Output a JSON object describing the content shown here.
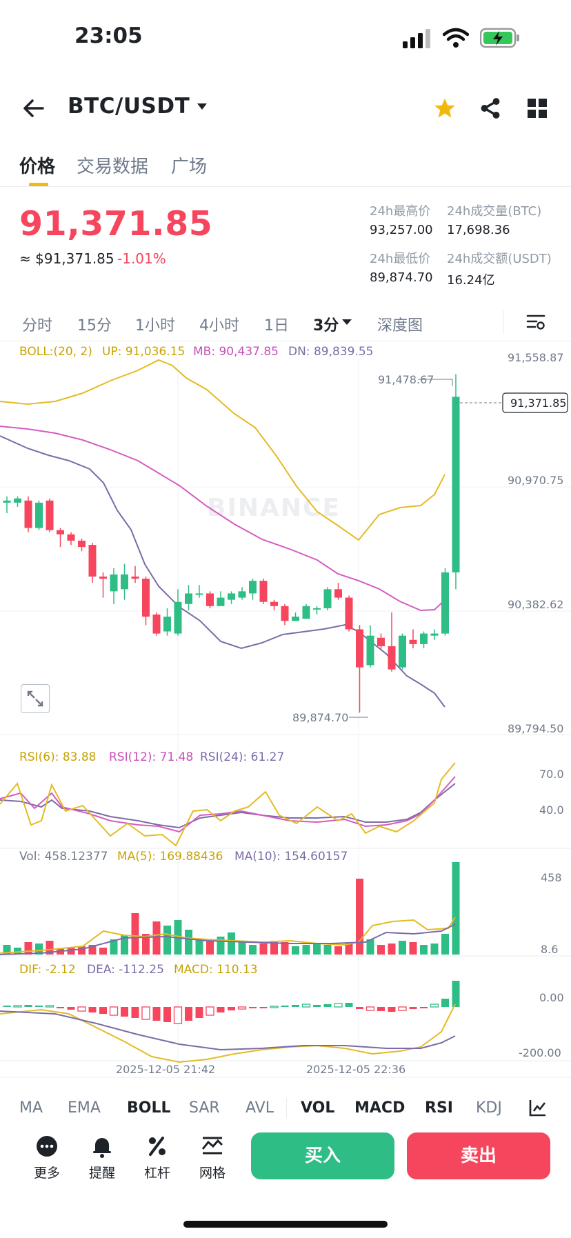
{
  "status": {
    "time": "23:05"
  },
  "header": {
    "pair": "BTC/USDT"
  },
  "tabs": [
    "价格",
    "交易数据",
    "广场"
  ],
  "price": {
    "last": "91,371.85",
    "usd": "≈ $91,371.85",
    "change": "-1.01%"
  },
  "stats": {
    "high_label": "24h最高价",
    "high": "93,257.00",
    "volbtc_label": "24h成交量(BTC)",
    "volbtc": "17,698.36",
    "low_label": "24h最低价",
    "low": "89,874.70",
    "volusdt_label": "24h成交额(USDT)",
    "volusdt": "16.24亿"
  },
  "intervals": [
    "分时",
    "15分",
    "1小时",
    "4小时",
    "1日",
    "3分",
    "深度图"
  ],
  "indicators": {
    "boll": {
      "name": "BOLL:(20, 2)",
      "up": "UP: 91,036.15",
      "mb": "MB: 90,437.85",
      "dn": "DN: 89,839.55"
    },
    "rsi": {
      "r6": "RSI(6): 83.88",
      "r12": "RSI(12): 71.48",
      "r24": "RSI(24): 61.27"
    },
    "vol": {
      "vol": "Vol: 458.12377",
      "ma5": "MA(5): 169.88436",
      "ma10": "MA(10): 154.60157"
    },
    "macd": {
      "dif": "DIF: -2.12",
      "dea": "DEA: -112.25",
      "macd": "MACD: 110.13"
    }
  },
  "axis": {
    "price": [
      "91,558.87",
      "90,970.75",
      "90,382.62",
      "89,794.50"
    ],
    "rsi": [
      "70.0",
      "40.0"
    ],
    "vol": [
      "458",
      "8.6"
    ],
    "macd": [
      "0.00",
      "-200.00"
    ],
    "time": [
      "2025-12-05 21:42",
      "2025-12-05 22:36"
    ]
  },
  "chart_labels": {
    "high_marker": "91,478.67",
    "low_marker": "89,874.70",
    "last_price_tag": "91,371.85",
    "watermark": "BINANCE"
  },
  "bottom_tabs": [
    "MA",
    "EMA",
    "BOLL",
    "SAR",
    "AVL",
    "VOL",
    "MACD",
    "RSI",
    "KDJ"
  ],
  "actions": [
    "更多",
    "提醒",
    "杠杆",
    "网格"
  ],
  "buttons": {
    "buy": "买入",
    "sell": "卖出"
  },
  "colors": {
    "up": "#2ebd85",
    "down": "#f6465d",
    "accent": "#f0b90b"
  },
  "chart_data": {
    "type": "candlestick",
    "interval": "3分",
    "ylim": [
      89794.5,
      91558.87
    ],
    "candles": [
      {
        "o": 90870,
        "c": 90880,
        "h": 90900,
        "l": 90820
      },
      {
        "o": 90870,
        "c": 90890,
        "h": 90900,
        "l": 90850
      },
      {
        "o": 90880,
        "c": 90750,
        "h": 90900,
        "l": 90730
      },
      {
        "o": 90750,
        "c": 90870,
        "h": 90880,
        "l": 90740
      },
      {
        "o": 90880,
        "c": 90740,
        "h": 90890,
        "l": 90730
      },
      {
        "o": 90740,
        "c": 90720,
        "h": 90750,
        "l": 90660
      },
      {
        "o": 90720,
        "c": 90690,
        "h": 90730,
        "l": 90670
      },
      {
        "o": 90690,
        "c": 90660,
        "h": 90700,
        "l": 90640
      },
      {
        "o": 90670,
        "c": 90520,
        "h": 90680,
        "l": 90490
      },
      {
        "o": 90520,
        "c": 90510,
        "h": 90540,
        "l": 90420
      },
      {
        "o": 90450,
        "c": 90530,
        "h": 90560,
        "l": 90390
      },
      {
        "o": 90460,
        "c": 90530,
        "h": 90580,
        "l": 90410
      },
      {
        "o": 90520,
        "c": 90510,
        "h": 90570,
        "l": 90490
      },
      {
        "o": 90510,
        "c": 90330,
        "h": 90520,
        "l": 90290
      },
      {
        "o": 90340,
        "c": 90250,
        "h": 90350,
        "l": 90240
      },
      {
        "o": 90260,
        "c": 90330,
        "h": 90370,
        "l": 90240
      },
      {
        "o": 90250,
        "c": 90400,
        "h": 90460,
        "l": 90240
      },
      {
        "o": 90390,
        "c": 90440,
        "h": 90480,
        "l": 90360
      },
      {
        "o": 90440,
        "c": 90440,
        "h": 90480,
        "l": 90420
      },
      {
        "o": 90440,
        "c": 90380,
        "h": 90450,
        "l": 90370
      },
      {
        "o": 90380,
        "c": 90420,
        "h": 90450,
        "l": 90380
      },
      {
        "o": 90410,
        "c": 90440,
        "h": 90450,
        "l": 90390
      },
      {
        "o": 90420,
        "c": 90450,
        "h": 90470,
        "l": 90410
      },
      {
        "o": 90440,
        "c": 90500,
        "h": 90510,
        "l": 90410
      },
      {
        "o": 90500,
        "c": 90400,
        "h": 90510,
        "l": 90390
      },
      {
        "o": 90400,
        "c": 90380,
        "h": 90410,
        "l": 90360
      },
      {
        "o": 90380,
        "c": 90310,
        "h": 90390,
        "l": 90290
      },
      {
        "o": 90310,
        "c": 90330,
        "h": 90350,
        "l": 90310
      },
      {
        "o": 90320,
        "c": 90380,
        "h": 90390,
        "l": 90320
      },
      {
        "o": 90370,
        "c": 90370,
        "h": 90380,
        "l": 90340
      },
      {
        "o": 90370,
        "c": 90460,
        "h": 90470,
        "l": 90360
      },
      {
        "o": 90460,
        "c": 90420,
        "h": 90490,
        "l": 90410
      },
      {
        "o": 90420,
        "c": 90270,
        "h": 90430,
        "l": 90260
      },
      {
        "o": 90270,
        "c": 90090,
        "h": 90290,
        "l": 89875
      },
      {
        "o": 90100,
        "c": 90240,
        "h": 90290,
        "l": 90090
      },
      {
        "o": 90230,
        "c": 90190,
        "h": 90250,
        "l": 90170
      },
      {
        "o": 90190,
        "c": 90080,
        "h": 90350,
        "l": 90070
      },
      {
        "o": 90090,
        "c": 90240,
        "h": 90250,
        "l": 90080
      },
      {
        "o": 90220,
        "c": 90200,
        "h": 90270,
        "l": 90180
      },
      {
        "o": 90200,
        "c": 90250,
        "h": 90260,
        "l": 90180
      },
      {
        "o": 90240,
        "c": 90250,
        "h": 90270,
        "l": 90220
      },
      {
        "o": 90250,
        "c": 90540,
        "h": 90560,
        "l": 90240
      },
      {
        "o": 90540,
        "c": 91371.85,
        "h": 91478.67,
        "l": 90460
      }
    ]
  }
}
